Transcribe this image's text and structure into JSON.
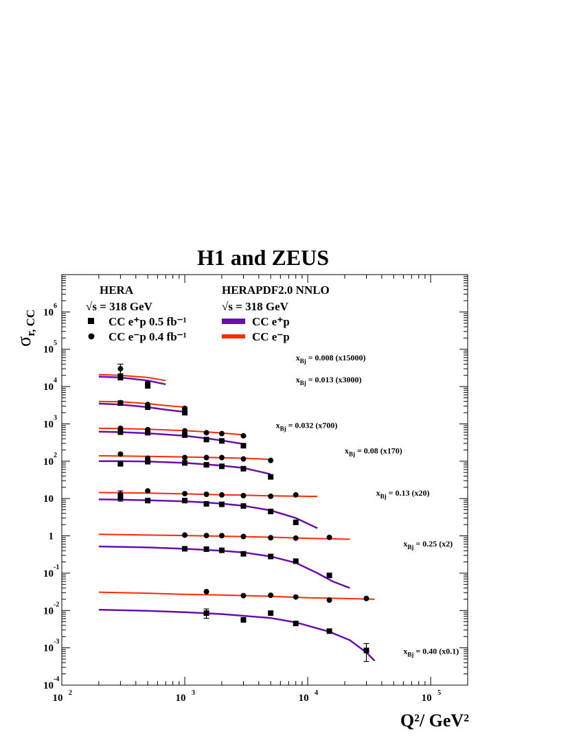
{
  "chart_data": {
    "type": "scatter",
    "title": "H1 and ZEUS",
    "xlabel": "Q²/ GeV²",
    "ylabel": "σr, CC",
    "xscale": "log",
    "yscale": "log",
    "xlim": [
      100,
      200000
    ],
    "ylim": [
      0.0001,
      10000000
    ],
    "x_ticks": [
      {
        "base": "10",
        "exp": "2",
        "value": 100
      },
      {
        "base": "10",
        "exp": "3",
        "value": 1000
      },
      {
        "base": "10",
        "exp": "4",
        "value": 10000
      },
      {
        "base": "10",
        "exp": "5",
        "value": 100000
      }
    ],
    "y_ticks": [
      {
        "base": "10",
        "exp": "-4",
        "value": 0.0001
      },
      {
        "base": "10",
        "exp": "-3",
        "value": 0.001
      },
      {
        "base": "10",
        "exp": "-2",
        "value": 0.01
      },
      {
        "base": "10",
        "exp": "-1",
        "value": 0.1
      },
      {
        "base": "1",
        "exp": "",
        "value": 1
      },
      {
        "base": "10",
        "exp": "",
        "value": 10
      },
      {
        "base": "10",
        "exp": "2",
        "value": 100
      },
      {
        "base": "10",
        "exp": "3",
        "value": 1000
      },
      {
        "base": "10",
        "exp": "4",
        "value": 10000
      },
      {
        "base": "10",
        "exp": "5",
        "value": 100000
      },
      {
        "base": "10",
        "exp": "6",
        "value": 1000000
      }
    ],
    "legend": {
      "left_header": "HERA",
      "left_energy": "√s = 318 GeV",
      "right_header": "HERAPDF2.0 NNLO",
      "right_energy": "√s = 318 GeV",
      "data_series": [
        {
          "label": "CC e⁺p 0.5 fb⁻¹",
          "marker": "square"
        },
        {
          "label": "CC e⁻p 0.4 fb⁻¹",
          "marker": "circle"
        }
      ],
      "fit_series": [
        {
          "label": "CC e⁺p",
          "color": "#6a0dad"
        },
        {
          "label": "CC e⁻p",
          "color": "#ff2a00"
        }
      ]
    },
    "colors": {
      "ep_plus": "#6a0dad",
      "ep_minus": "#ff2a00"
    },
    "bins": [
      {
        "label": "xBj = 0.008   (x15000)",
        "x_text": "x",
        "x_sub": "Bj",
        "rest": " = 0.008   (x15000)",
        "label_at": [
          8000,
          50000
        ],
        "eplus": [
          [
            300,
            18000
          ],
          [
            500,
            11000
          ],
          [
            1000,
            2000
          ]
        ],
        "eplus_err": [
          [
            300,
            15000,
            22000
          ],
          [
            500,
            9000,
            13500
          ]
        ],
        "eminus": [
          [
            300,
            30000
          ],
          [
            500,
            12000
          ],
          [
            1000,
            2600
          ]
        ],
        "eminus_err": [
          [
            300,
            22000,
            40000
          ]
        ],
        "fit_eplus": [
          [
            200,
            18500
          ],
          [
            300,
            17500
          ],
          [
            500,
            14500
          ],
          [
            700,
            11500
          ]
        ],
        "fit_eminus": [
          [
            200,
            21000
          ],
          [
            300,
            20000
          ],
          [
            500,
            17500
          ],
          [
            700,
            14500
          ]
        ]
      },
      {
        "label": "xBj = 0.013   (x3000)",
        "x_text": "x",
        "x_sub": "Bj",
        "rest": " = 0.013   (x3000)",
        "label_at": [
          8000,
          13000
        ],
        "eplus": [
          [
            300,
            3600
          ],
          [
            500,
            2800
          ],
          [
            1000,
            2000
          ]
        ],
        "eminus": [
          [
            300,
            3700
          ],
          [
            500,
            3300
          ],
          [
            1000,
            2600
          ]
        ],
        "fit_eplus": [
          [
            200,
            3500
          ],
          [
            300,
            3300
          ],
          [
            500,
            2800
          ],
          [
            700,
            2400
          ],
          [
            1000,
            2100
          ]
        ],
        "fit_eminus": [
          [
            200,
            4000
          ],
          [
            300,
            3900
          ],
          [
            500,
            3500
          ],
          [
            700,
            3100
          ],
          [
            1000,
            2800
          ]
        ]
      },
      {
        "label": "xBj = 0.032   (x700)",
        "x_text": "x",
        "x_sub": "Bj",
        "rest": " = 0.032   (x700)",
        "label_at": [
          5500,
          780
        ],
        "eplus": [
          [
            300,
            600
          ],
          [
            500,
            580
          ],
          [
            1000,
            500
          ],
          [
            1500,
            380
          ],
          [
            2000,
            350
          ],
          [
            3000,
            260
          ]
        ],
        "eminus": [
          [
            300,
            760
          ],
          [
            500,
            700
          ],
          [
            1000,
            650
          ],
          [
            1500,
            580
          ],
          [
            2000,
            550
          ],
          [
            3000,
            480
          ]
        ],
        "fit_eplus": [
          [
            200,
            620
          ],
          [
            300,
            600
          ],
          [
            500,
            560
          ],
          [
            1000,
            480
          ],
          [
            1500,
            410
          ],
          [
            2000,
            360
          ],
          [
            3000,
            290
          ]
        ],
        "fit_eminus": [
          [
            200,
            760
          ],
          [
            300,
            750
          ],
          [
            500,
            720
          ],
          [
            1000,
            660
          ],
          [
            1500,
            610
          ],
          [
            2000,
            570
          ],
          [
            3000,
            510
          ]
        ]
      },
      {
        "label": "xBj = 0.08   (x170)",
        "x_text": "x",
        "x_sub": "Bj",
        "rest": " = 0.08   (x170)",
        "label_at": [
          20000,
          160
        ],
        "eplus": [
          [
            300,
            85
          ],
          [
            500,
            97
          ],
          [
            1000,
            90
          ],
          [
            1500,
            80
          ],
          [
            2000,
            73
          ],
          [
            3000,
            63
          ],
          [
            5000,
            38
          ]
        ],
        "eminus": [
          [
            300,
            155
          ],
          [
            500,
            120
          ],
          [
            1000,
            125
          ],
          [
            1500,
            125
          ],
          [
            2000,
            125
          ],
          [
            3000,
            115
          ],
          [
            5000,
            105
          ]
        ],
        "fit_eplus": [
          [
            200,
            100
          ],
          [
            300,
            100
          ],
          [
            500,
            98
          ],
          [
            1000,
            90
          ],
          [
            1500,
            82
          ],
          [
            2000,
            76
          ],
          [
            3000,
            66
          ],
          [
            5000,
            45
          ]
        ],
        "fit_eminus": [
          [
            200,
            140
          ],
          [
            300,
            138
          ],
          [
            500,
            135
          ],
          [
            1000,
            130
          ],
          [
            2000,
            124
          ],
          [
            3000,
            120
          ],
          [
            5000,
            112
          ]
        ]
      },
      {
        "label": "xBj = 0.13   (x20)",
        "x_text": "x",
        "x_sub": "Bj",
        "rest": " = 0.13   (x20)",
        "label_at": [
          36000,
          12
        ],
        "eplus": [
          [
            300,
            10.5
          ],
          [
            500,
            8.8
          ],
          [
            1000,
            8.8
          ],
          [
            1500,
            7.2
          ],
          [
            2000,
            7
          ],
          [
            3000,
            6.3
          ],
          [
            5000,
            4.5
          ],
          [
            8000,
            2.3
          ]
        ],
        "eplus_err": [
          [
            300,
            8.5,
            13
          ]
        ],
        "eminus": [
          [
            300,
            13
          ],
          [
            500,
            16
          ],
          [
            1000,
            13.5
          ],
          [
            1500,
            13
          ],
          [
            2000,
            12.5
          ],
          [
            3000,
            12
          ],
          [
            5000,
            11.5
          ],
          [
            8000,
            12.5
          ]
        ],
        "eminus_err": [
          [
            300,
            10.5,
            16
          ]
        ],
        "fit_eplus": [
          [
            200,
            9.5
          ],
          [
            300,
            9.3
          ],
          [
            500,
            9
          ],
          [
            1000,
            8.4
          ],
          [
            1500,
            7.8
          ],
          [
            2000,
            7.3
          ],
          [
            3000,
            6.4
          ],
          [
            5000,
            4.8
          ],
          [
            8000,
            3
          ],
          [
            12000,
            1.6
          ]
        ],
        "fit_eminus": [
          [
            200,
            14.5
          ],
          [
            500,
            14
          ],
          [
            1000,
            13.3
          ],
          [
            2000,
            12.6
          ],
          [
            3000,
            12.3
          ],
          [
            5000,
            11.8
          ],
          [
            8000,
            11.6
          ],
          [
            12000,
            11.4
          ]
        ]
      },
      {
        "label": "xBj = 0.25   (x2)",
        "x_text": "x",
        "x_sub": "Bj",
        "rest": " = 0.25   (x2)",
        "label_at": [
          60000,
          0.52
        ],
        "eplus": [
          [
            1000,
            0.45
          ],
          [
            1500,
            0.44
          ],
          [
            2000,
            0.41
          ],
          [
            3000,
            0.33
          ],
          [
            5000,
            0.28
          ],
          [
            8000,
            0.21
          ],
          [
            15000,
            0.087
          ]
        ],
        "eminus": [
          [
            1000,
            1.05
          ],
          [
            1500,
            1.02
          ],
          [
            2000,
            1.01
          ],
          [
            3000,
            0.96
          ],
          [
            5000,
            0.89
          ],
          [
            8000,
            0.87
          ],
          [
            15000,
            0.91
          ]
        ],
        "fit_eplus": [
          [
            200,
            0.52
          ],
          [
            500,
            0.49
          ],
          [
            1000,
            0.45
          ],
          [
            2000,
            0.4
          ],
          [
            3000,
            0.36
          ],
          [
            5000,
            0.28
          ],
          [
            8000,
            0.19
          ],
          [
            12000,
            0.1
          ],
          [
            16000,
            0.06
          ],
          [
            22000,
            0.04
          ]
        ],
        "fit_eminus": [
          [
            200,
            1.1
          ],
          [
            500,
            1.05
          ],
          [
            1000,
            1.02
          ],
          [
            2000,
            0.98
          ],
          [
            5000,
            0.92
          ],
          [
            10000,
            0.86
          ],
          [
            22000,
            0.81
          ]
        ]
      },
      {
        "label": "xBj = 0.40   (x0.1)",
        "x_text": "x",
        "x_sub": "Bj",
        "rest": " = 0.40   (x0.1)",
        "label_at": [
          60000,
          0.00068
        ],
        "eplus": [
          [
            1500,
            0.0085
          ],
          [
            3000,
            0.0056
          ],
          [
            5000,
            0.0085
          ],
          [
            8000,
            0.0045
          ],
          [
            15000,
            0.0028
          ],
          [
            30000,
            0.00085
          ]
        ],
        "eplus_err": [
          [
            1500,
            0.0062,
            0.011
          ],
          [
            30000,
            0.00043,
            0.0013
          ]
        ],
        "eminus": [
          [
            1500,
            0.032
          ],
          [
            3000,
            0.025
          ],
          [
            5000,
            0.0255
          ],
          [
            8000,
            0.023
          ],
          [
            15000,
            0.019
          ],
          [
            30000,
            0.021
          ]
        ],
        "fit_eplus": [
          [
            200,
            0.0105
          ],
          [
            500,
            0.0098
          ],
          [
            1000,
            0.009
          ],
          [
            2000,
            0.008
          ],
          [
            5000,
            0.0063
          ],
          [
            8000,
            0.0048
          ],
          [
            15000,
            0.0027
          ],
          [
            22000,
            0.0016
          ],
          [
            30000,
            0.00075
          ],
          [
            35000,
            0.00045
          ]
        ],
        "fit_eminus": [
          [
            200,
            0.031
          ],
          [
            500,
            0.029
          ],
          [
            1000,
            0.027
          ],
          [
            2000,
            0.026
          ],
          [
            5000,
            0.024
          ],
          [
            10000,
            0.022
          ],
          [
            20000,
            0.021
          ],
          [
            35000,
            0.02
          ]
        ]
      }
    ]
  }
}
